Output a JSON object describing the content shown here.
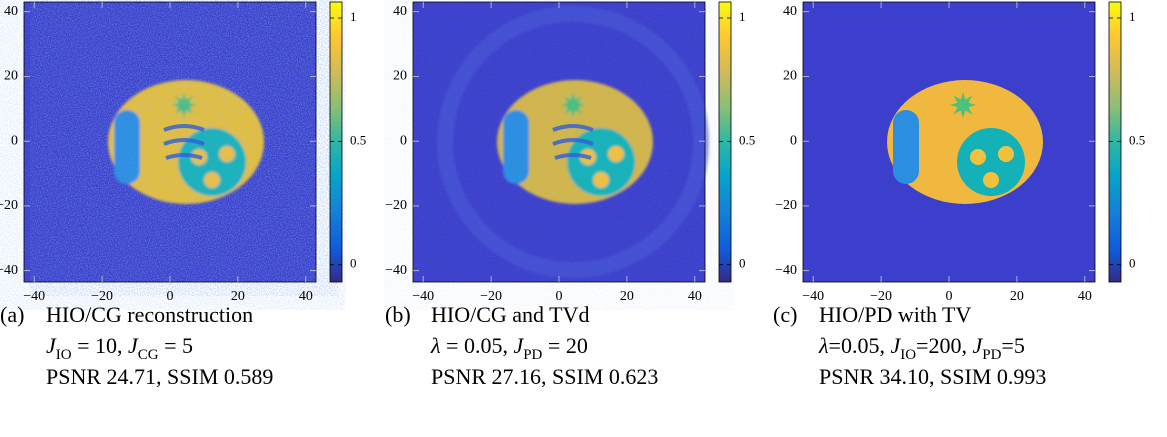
{
  "panels": [
    {
      "label": "(a)",
      "lines": [
        [
          {
            "t": "HIO/CG reconstruction"
          }
        ],
        [
          {
            "t": "J",
            "italic": true
          },
          {
            "t": "IO",
            "sub": true
          },
          {
            "t": " = 10, "
          },
          {
            "t": "J",
            "italic": true
          },
          {
            "t": "CG",
            "sub": true
          },
          {
            "t": " = 5"
          }
        ],
        [
          {
            "t": "PSNR 24.71, SSIM 0.589"
          }
        ]
      ],
      "xlim": [
        -43,
        43
      ],
      "ylim": [
        -43.5,
        43
      ],
      "xticks": [
        {
          "value": -40,
          "label": "−40"
        },
        {
          "value": -20,
          "label": "−20"
        },
        0,
        20,
        40
      ],
      "yticks": [
        {
          "value": -40,
          "label": "−40"
        },
        {
          "value": -20,
          "label": "−20"
        },
        0,
        20,
        40
      ],
      "colorbar": {
        "lim": [
          -0.07,
          1.065
        ],
        "ticks": [
          0,
          0.5,
          1
        ]
      }
    },
    {
      "label": "(b)",
      "lines": [
        [
          {
            "t": "HIO/CG and TVd"
          }
        ],
        [
          {
            "t": "λ",
            "italic": true
          },
          {
            "t": " = 0.05, "
          },
          {
            "t": "J",
            "italic": true
          },
          {
            "t": "PD",
            "sub": true
          },
          {
            "t": " = 20"
          }
        ],
        [
          {
            "t": "PSNR 27.16, SSIM 0.623"
          }
        ]
      ],
      "xlim": [
        -43,
        43
      ],
      "ylim": [
        -43.5,
        43
      ],
      "xticks": [
        {
          "value": -40,
          "label": "−40"
        },
        {
          "value": -20,
          "label": "−20"
        },
        0,
        20,
        40
      ],
      "yticks": [
        {
          "value": -40,
          "label": "−40"
        },
        {
          "value": -20,
          "label": "−20"
        },
        0,
        20,
        40
      ],
      "colorbar": {
        "lim": [
          -0.07,
          1.065
        ],
        "ticks": [
          0,
          0.5,
          1
        ]
      }
    },
    {
      "label": "(c)",
      "lines": [
        [
          {
            "t": "HIO/PD with TV"
          }
        ],
        [
          {
            "t": "λ",
            "italic": true
          },
          {
            "t": "=0.05, "
          },
          {
            "t": "J",
            "italic": true
          },
          {
            "t": "IO",
            "sub": true
          },
          {
            "t": "=200, "
          },
          {
            "t": "J",
            "italic": true
          },
          {
            "t": "PD",
            "sub": true
          },
          {
            "t": "=5"
          }
        ],
        [
          {
            "t": "PSNR 34.10, SSIM 0.993"
          }
        ]
      ],
      "xlim": [
        -43,
        43
      ],
      "ylim": [
        -43.5,
        43
      ],
      "xticks": [
        {
          "value": -40,
          "label": "−40"
        },
        {
          "value": -20,
          "label": "−20"
        },
        0,
        20,
        40
      ],
      "yticks": [
        {
          "value": -40,
          "label": "−40"
        },
        {
          "value": -20,
          "label": "−20"
        },
        0,
        20,
        40
      ],
      "colorbar": {
        "lim": [
          -0.07,
          1.065
        ],
        "ticks": [
          0,
          0.5,
          1
        ]
      }
    }
  ]
}
